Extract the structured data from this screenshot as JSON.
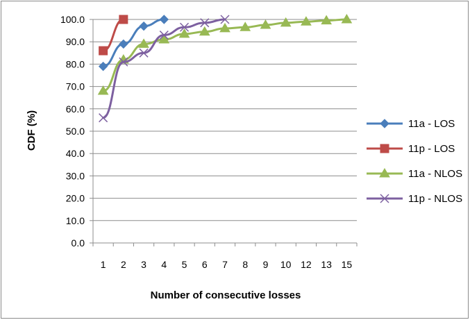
{
  "chart_data": {
    "type": "line",
    "title": "",
    "xlabel": "Number of consecutive losses",
    "ylabel": "CDF (%)",
    "ylim": [
      0,
      100
    ],
    "yticks": [
      "0.0",
      "10.0",
      "20.0",
      "30.0",
      "40.0",
      "50.0",
      "60.0",
      "70.0",
      "80.0",
      "90.0",
      "100.0"
    ],
    "categories": [
      "1",
      "2",
      "3",
      "4",
      "5",
      "6",
      "7",
      "8",
      "9",
      "10",
      "12",
      "13",
      "15"
    ],
    "grid": "horizontal",
    "legend_position": "right",
    "series": [
      {
        "name": "11a - LOS",
        "color": "#4a7ebb",
        "marker": "diamond",
        "values": [
          79,
          89,
          97,
          100,
          null,
          null,
          null,
          null,
          null,
          null,
          null,
          null,
          null
        ]
      },
      {
        "name": "11p - LOS",
        "color": "#be4b48",
        "marker": "square",
        "values": [
          86,
          100,
          null,
          null,
          null,
          null,
          null,
          null,
          null,
          null,
          null,
          null,
          null
        ]
      },
      {
        "name": "11a - NLOS",
        "color": "#98b954",
        "marker": "triangle",
        "values": [
          68,
          82,
          89,
          91,
          93.5,
          94.5,
          96,
          96.5,
          97.5,
          98.5,
          99,
          99.5,
          100
        ]
      },
      {
        "name": "11p - NLOS",
        "color": "#7d60a0",
        "marker": "x",
        "values": [
          56,
          81,
          85,
          93,
          96.5,
          98.5,
          100,
          null,
          null,
          null,
          null,
          null,
          null
        ]
      }
    ]
  }
}
